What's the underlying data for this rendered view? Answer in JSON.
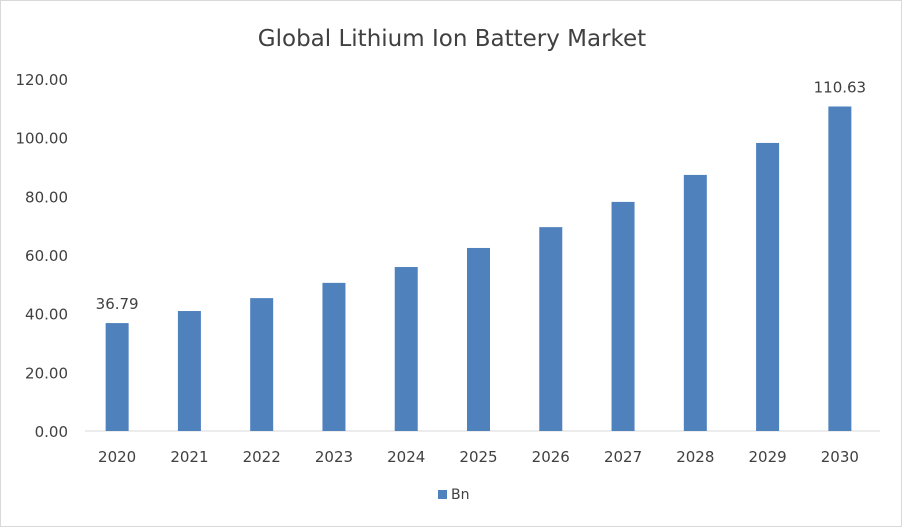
{
  "chart_data": {
    "type": "bar",
    "title": "Global Lithium Ion Battery Market",
    "categories": [
      "2020",
      "2021",
      "2022",
      "2023",
      "2024",
      "2025",
      "2026",
      "2027",
      "2028",
      "2029",
      "2030"
    ],
    "series": [
      {
        "name": "Bn",
        "values": [
          36.79,
          40.9,
          45.3,
          50.5,
          55.9,
          62.4,
          69.5,
          78.1,
          87.3,
          98.2,
          110.63
        ]
      }
    ],
    "data_labels": {
      "2020": "36.79",
      "2030": "110.63"
    },
    "yticks": [
      "0.00",
      "20.00",
      "40.00",
      "60.00",
      "80.00",
      "100.00",
      "120.00"
    ],
    "ylim": [
      0,
      120
    ],
    "grid": false,
    "legend": "bottom",
    "colors": {
      "bar": "#4F81BD",
      "axis": "#d9d9d9",
      "text": "#404040"
    }
  }
}
